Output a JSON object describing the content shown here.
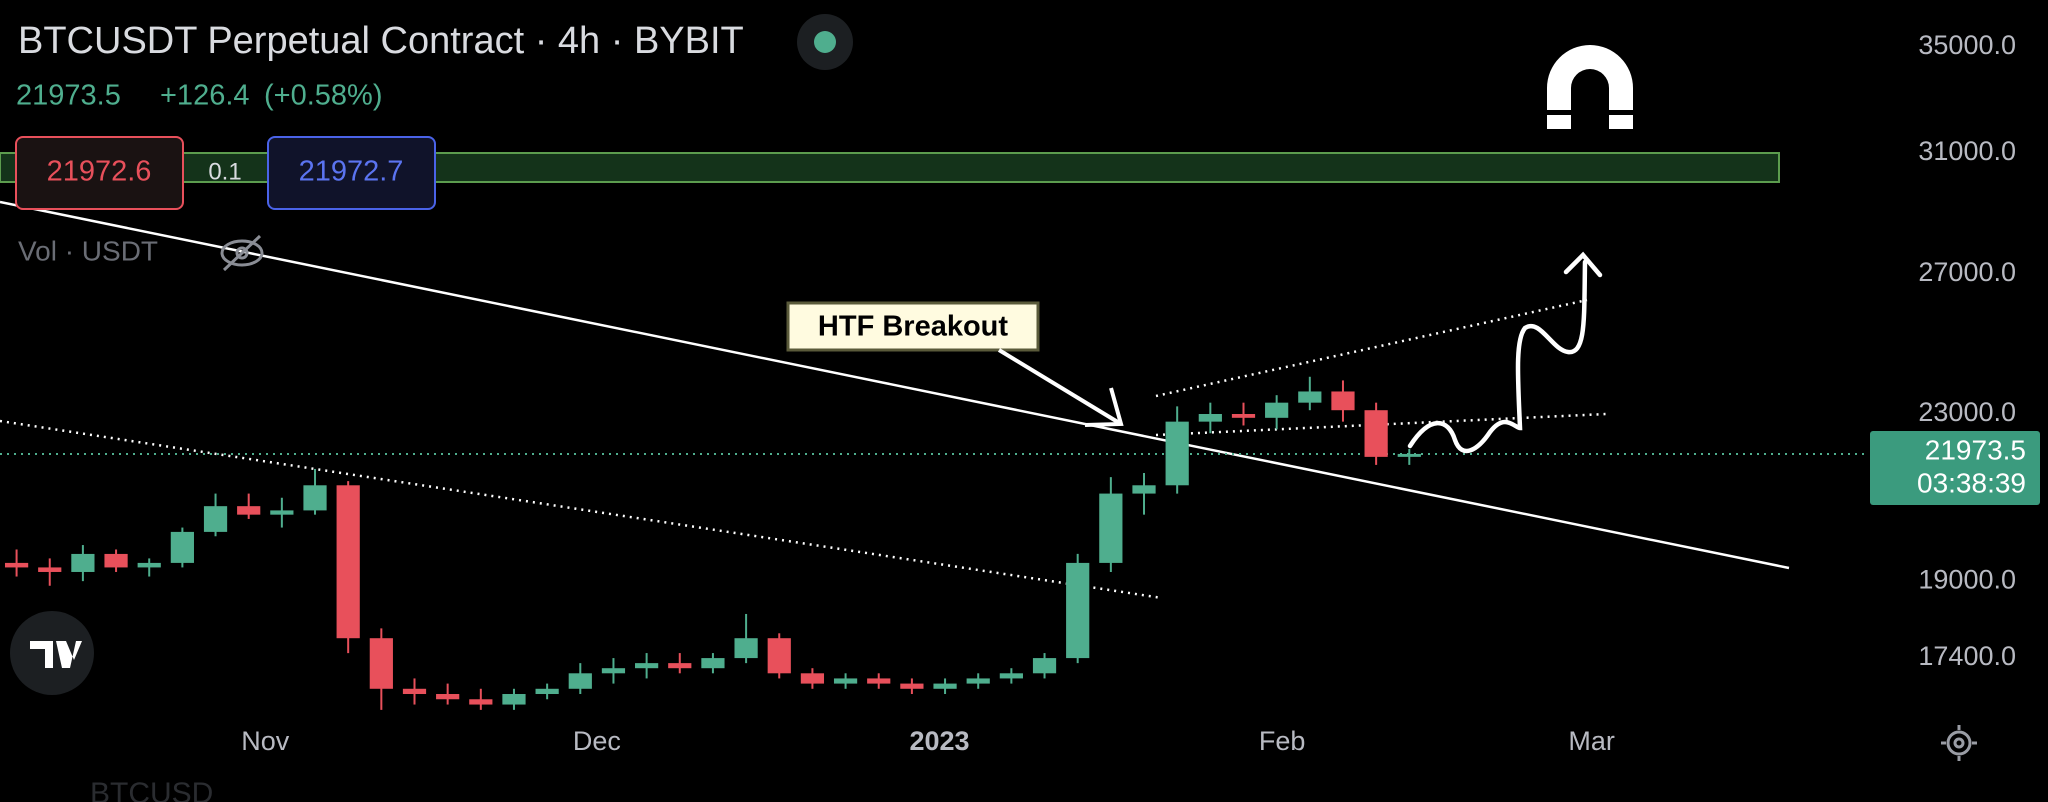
{
  "chart_data": {
    "type": "candlestick",
    "title": "BTCUSDT Perpetual Contract · 4h · BYBIT",
    "last_price": 21973.5,
    "change": {
      "value": 126.4,
      "label": "+126.4"
    },
    "change_pct": {
      "value": 0.58,
      "label": "(+0.58%)"
    },
    "bid": 21972.6,
    "spread": 0.1,
    "ask": 21972.7,
    "volume_label": "Vol · USDT",
    "annotation": "HTF Breakout",
    "countdown": "03:38:39",
    "watermark": "BTCUSD",
    "log_scale": true,
    "grid": false,
    "up_color": "#4fae8e",
    "down_color": "#e8505b",
    "x": [
      "2022-10-08",
      "2022-10-11",
      "2022-10-14",
      "2022-10-17",
      "2022-10-20",
      "2022-10-23",
      "2022-10-26",
      "2022-10-29",
      "2022-11-01",
      "2022-11-04",
      "2022-11-07",
      "2022-11-10",
      "2022-11-13",
      "2022-11-16",
      "2022-11-19",
      "2022-11-22",
      "2022-11-25",
      "2022-11-28",
      "2022-12-01",
      "2022-12-04",
      "2022-12-07",
      "2022-12-10",
      "2022-12-13",
      "2022-12-16",
      "2022-12-19",
      "2022-12-22",
      "2022-12-25",
      "2022-12-28",
      "2022-12-31",
      "2023-01-03",
      "2023-01-06",
      "2023-01-09",
      "2023-01-12",
      "2023-01-15",
      "2023-01-18",
      "2023-01-21",
      "2023-01-24",
      "2023-01-27",
      "2023-01-30",
      "2023-02-02",
      "2023-02-05",
      "2023-02-08",
      "2023-02-11"
    ],
    "open": [
      19400,
      19300,
      19200,
      19600,
      19300,
      19400,
      20100,
      20700,
      20500,
      20600,
      21200,
      17800,
      16800,
      16700,
      16600,
      16500,
      16700,
      16800,
      17100,
      17200,
      17300,
      17200,
      17400,
      17800,
      17100,
      16900,
      17000,
      16900,
      16800,
      16900,
      17000,
      17100,
      17400,
      19400,
      21000,
      21200,
      22800,
      23000,
      22900,
      23300,
      23600,
      23100,
      21900
    ],
    "high": [
      19700,
      19500,
      19800,
      19700,
      19500,
      20200,
      21000,
      21000,
      20900,
      21600,
      21300,
      18000,
      17000,
      16900,
      16800,
      16800,
      16900,
      17300,
      17400,
      17500,
      17500,
      17500,
      18300,
      17900,
      17200,
      17100,
      17100,
      17000,
      17000,
      17100,
      17200,
      17500,
      19600,
      21400,
      21500,
      23200,
      23300,
      23300,
      23500,
      24000,
      23900,
      23300,
      22100
    ],
    "low": [
      19100,
      18900,
      19000,
      19200,
      19100,
      19300,
      20000,
      20400,
      20200,
      20500,
      17500,
      16400,
      16500,
      16500,
      16400,
      16400,
      16600,
      16700,
      16900,
      17000,
      17100,
      17100,
      17300,
      17000,
      16800,
      16800,
      16800,
      16700,
      16700,
      16800,
      16900,
      17000,
      17300,
      19200,
      20500,
      21000,
      22500,
      22700,
      22600,
      23100,
      22800,
      21700,
      21700
    ],
    "close": [
      19300,
      19200,
      19600,
      19300,
      19400,
      20100,
      20700,
      20500,
      20600,
      21200,
      17800,
      16800,
      16700,
      16600,
      16500,
      16700,
      16800,
      17100,
      17200,
      17300,
      17200,
      17400,
      17800,
      17100,
      16900,
      17000,
      16900,
      16800,
      16900,
      17000,
      17100,
      17400,
      19400,
      21000,
      21200,
      22800,
      23000,
      22900,
      23300,
      23600,
      23100,
      21900,
      21973.5
    ],
    "xlim": [
      "2022-10-08",
      "2023-03-26"
    ],
    "xticks": [
      {
        "value": "2022-11-01",
        "label": "Nov"
      },
      {
        "value": "2022-12-01",
        "label": "Dec"
      },
      {
        "value": "2023-01-01",
        "label": "2023"
      },
      {
        "value": "2023-02-01",
        "label": "Feb"
      },
      {
        "value": "2023-03-01",
        "label": "Mar"
      }
    ],
    "ylim": [
      16360,
      36920
    ],
    "yticks": [
      {
        "value": 35000,
        "label": "35000.0"
      },
      {
        "value": 31000,
        "label": "31000.0"
      },
      {
        "value": 27000,
        "label": "27000.0"
      },
      {
        "value": 23000,
        "label": "23000.0"
      },
      {
        "value": 19000,
        "label": "19000.0"
      },
      {
        "value": 17400,
        "label": "17400.0"
      }
    ]
  }
}
